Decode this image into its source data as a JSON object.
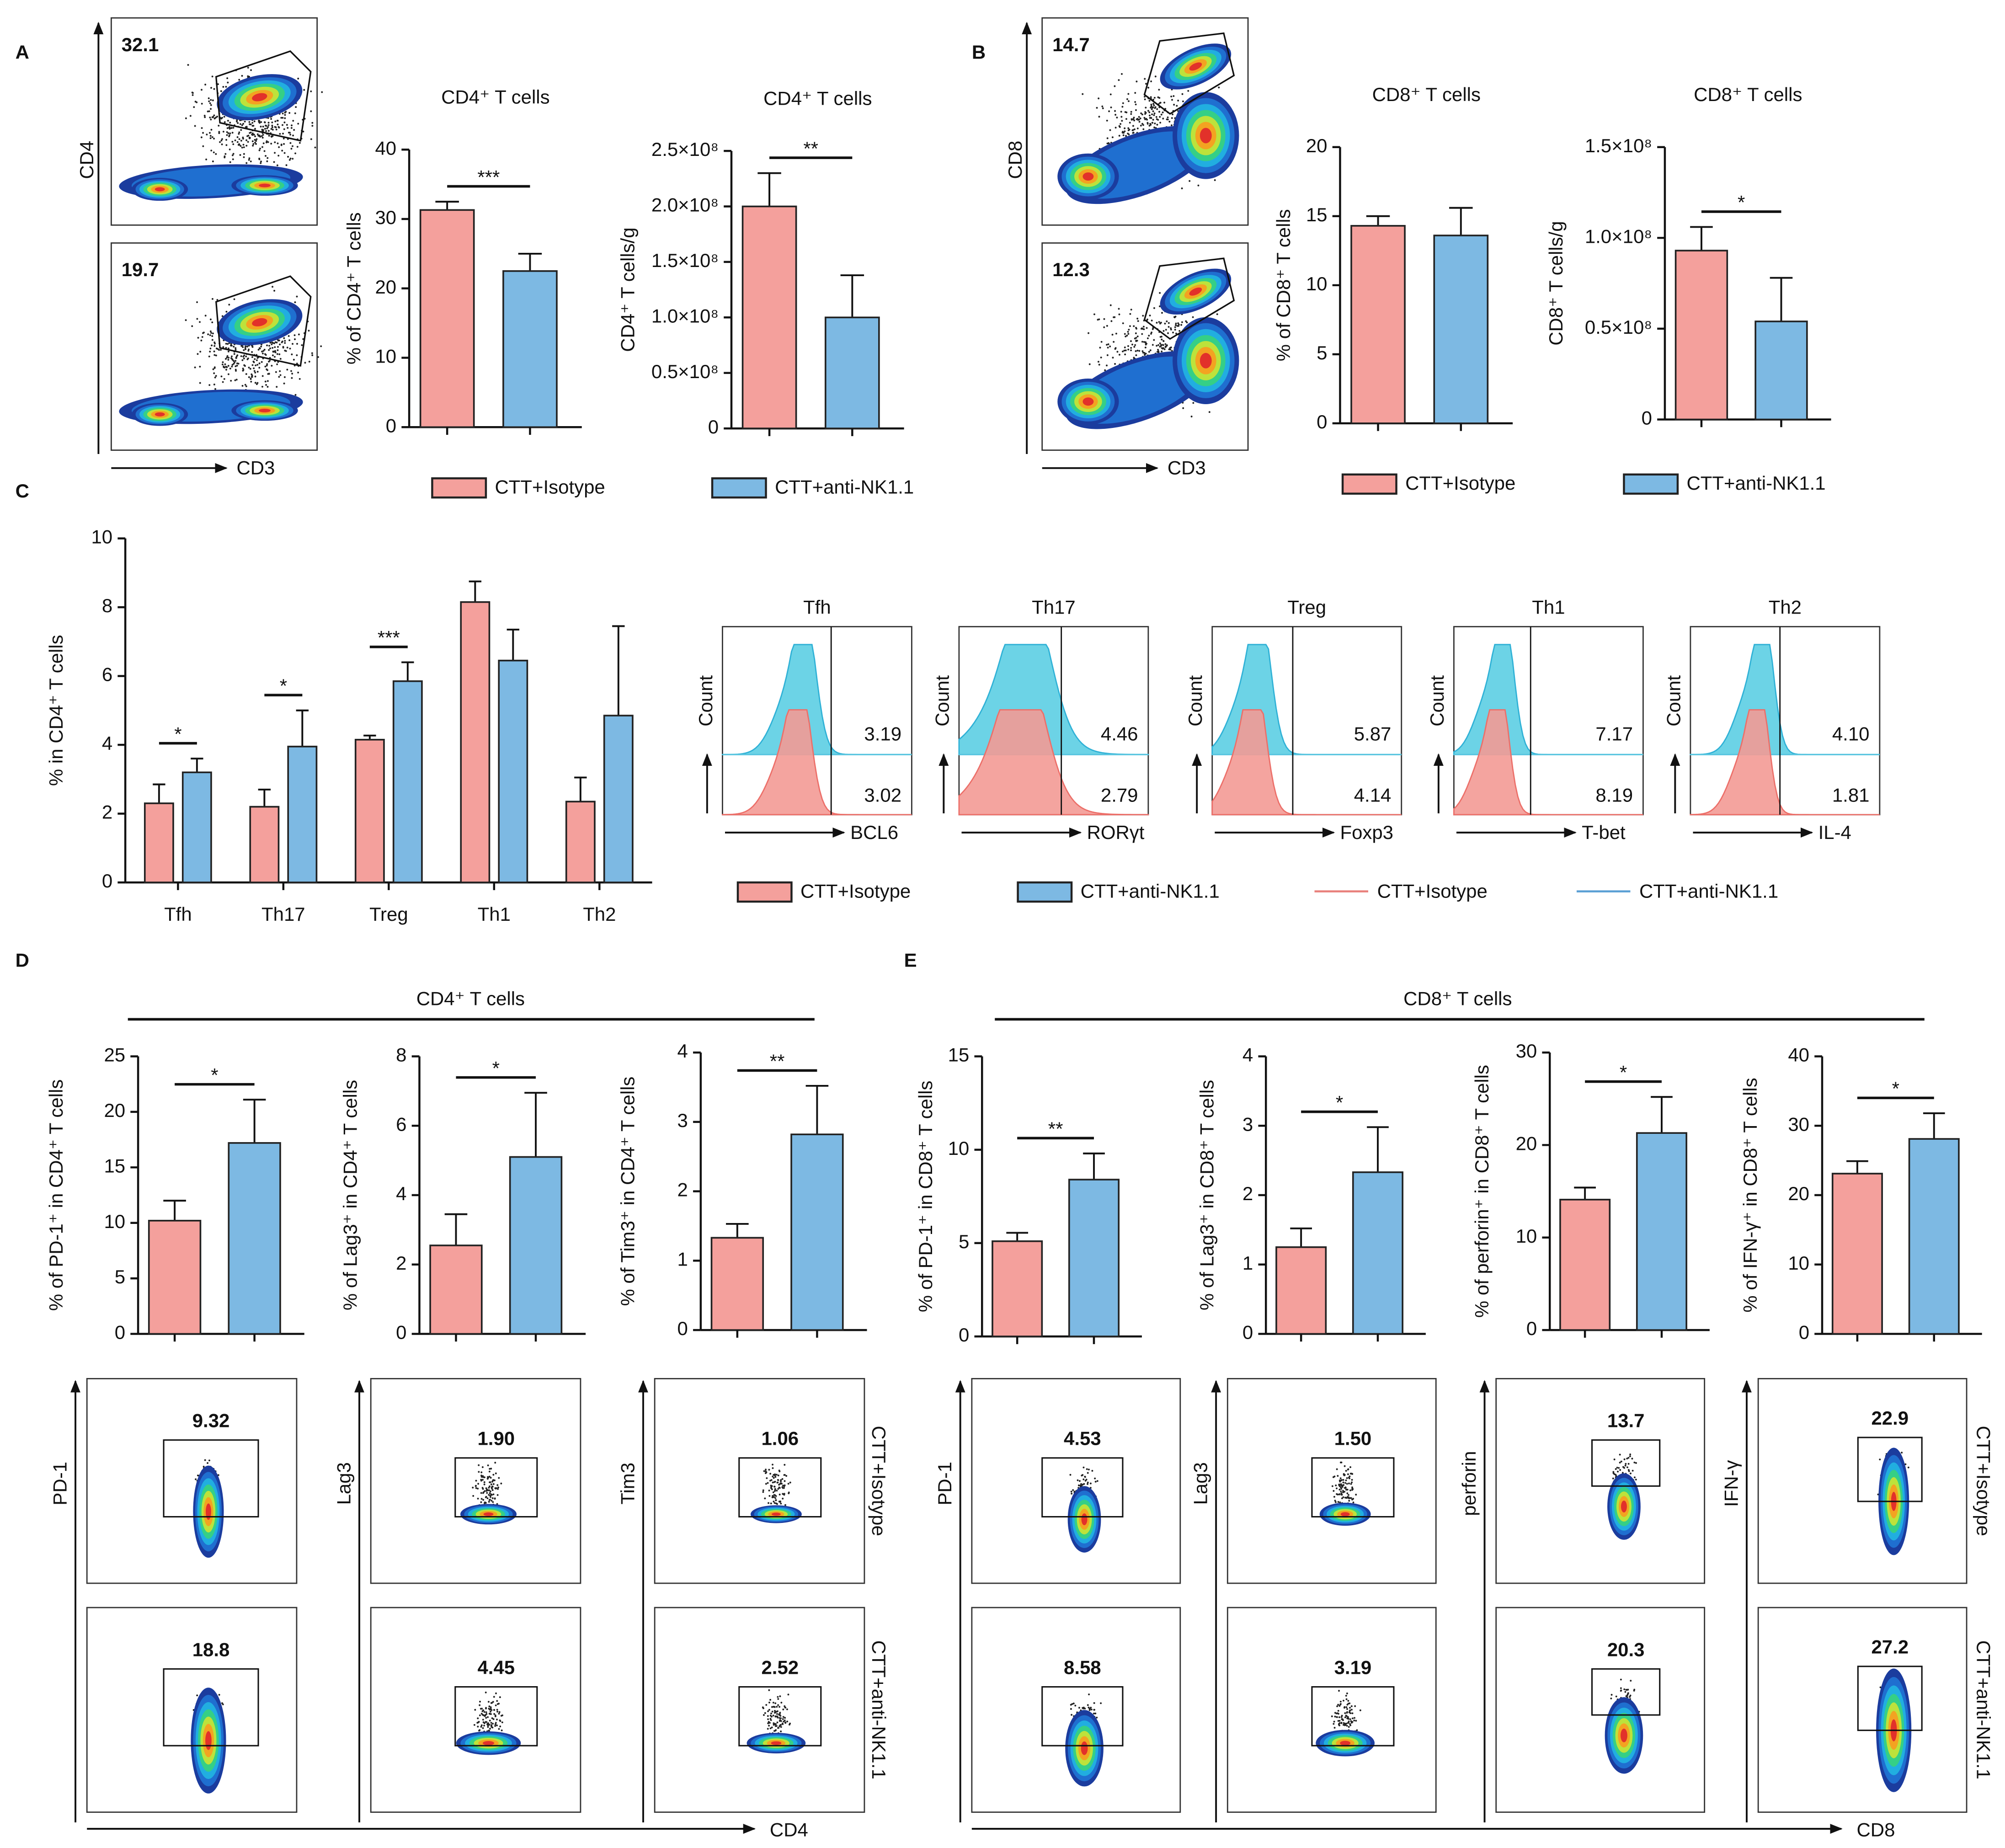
{
  "panels": [
    "A",
    "B",
    "C",
    "D",
    "E"
  ],
  "groups": [
    {
      "name": "CTT+Isotype",
      "color": "#f4a09c"
    },
    {
      "name": "CTT+anti-NK1.1",
      "color": "#7db9e3"
    }
  ],
  "headers": [
    "CD4⁺ T cells",
    "CD8⁺ T cells"
  ],
  "chart_data": [
    {
      "type": "bar",
      "title": "CD4⁺ T cells",
      "ylabel": "% of CD4⁺ T cells",
      "ylim": [
        0,
        40
      ],
      "yticks": [
        0,
        10,
        20,
        30,
        40
      ],
      "series": [
        {
          "values": [
            31.3
          ],
          "errors": [
            1.2
          ]
        },
        {
          "values": [
            22.5
          ],
          "errors": [
            2.5
          ]
        }
      ],
      "significance": "***"
    },
    {
      "type": "bar",
      "title": "CD4⁺ T cells",
      "ylabel": "CD4⁺ T cells/g",
      "ylim": [
        0,
        250000000
      ],
      "yticks": [
        0,
        {
          "value": 50000000,
          "label": "0.5×10⁸"
        },
        {
          "value": 100000000,
          "label": "1.0×10⁸"
        },
        {
          "value": 150000000,
          "label": "1.5×10⁸"
        },
        {
          "value": 200000000,
          "label": "2.0×10⁸"
        },
        {
          "value": 250000000,
          "label": "2.5×10⁸"
        }
      ],
      "series": [
        {
          "values": [
            200000000
          ],
          "errors": [
            30000000
          ]
        },
        {
          "values": [
            100000000
          ],
          "errors": [
            38000000
          ]
        }
      ],
      "significance": "**"
    },
    {
      "type": "bar",
      "title": "CD8⁺ T cells",
      "ylabel": "% of CD8⁺ T cells",
      "ylim": [
        0,
        20
      ],
      "yticks": [
        0,
        5,
        10,
        15,
        20
      ],
      "series": [
        {
          "values": [
            14.3
          ],
          "errors": [
            0.7
          ]
        },
        {
          "values": [
            13.6
          ],
          "errors": [
            2.0
          ]
        }
      ]
    },
    {
      "type": "bar",
      "title": "CD8⁺ T cells",
      "ylabel": "CD8⁺ T cells/g",
      "ylim": [
        0,
        150000000
      ],
      "yticks": [
        0,
        {
          "value": 50000000,
          "label": "0.5×10⁸"
        },
        {
          "value": 100000000,
          "label": "1.0×10⁸"
        },
        {
          "value": 150000000,
          "label": "1.5×10⁸"
        }
      ],
      "series": [
        {
          "values": [
            93000000
          ],
          "errors": [
            13000000
          ]
        },
        {
          "values": [
            54000000
          ],
          "errors": [
            24000000
          ]
        }
      ],
      "significance": "*"
    },
    {
      "type": "bar",
      "ylabel": "% in CD4⁺ T cells",
      "ylim": [
        0,
        10
      ],
      "yticks": [
        0,
        2,
        4,
        6,
        8,
        10
      ],
      "categories": [
        "Tfh",
        "Th17",
        "Treg",
        "Th1",
        "Th2"
      ],
      "series": [
        {
          "values": [
            2.3,
            2.2,
            4.15,
            8.15,
            2.35
          ],
          "errors": [
            0.55,
            0.5,
            0.12,
            0.6,
            0.7
          ]
        },
        {
          "values": [
            3.2,
            3.95,
            5.85,
            6.45,
            4.85
          ],
          "errors": [
            0.4,
            1.05,
            0.55,
            0.9,
            2.6
          ]
        }
      ],
      "significance": [
        "*",
        "*",
        "***",
        null,
        null
      ]
    },
    {
      "type": "bar",
      "ylabel": "% of PD-1⁺ in CD4⁺ T cells",
      "ylim": [
        0,
        25
      ],
      "yticks": [
        0,
        5,
        10,
        15,
        20,
        25
      ],
      "series": [
        {
          "values": [
            10.2
          ],
          "errors": [
            1.8
          ]
        },
        {
          "values": [
            17.2
          ],
          "errors": [
            3.9
          ]
        }
      ],
      "significance": "*"
    },
    {
      "type": "bar",
      "ylabel": "% of Lag3⁺ in CD4⁺ T cells",
      "ylim": [
        0,
        8
      ],
      "yticks": [
        0,
        2,
        4,
        6,
        8
      ],
      "series": [
        {
          "values": [
            2.55
          ],
          "errors": [
            0.9
          ]
        },
        {
          "values": [
            5.1
          ],
          "errors": [
            1.85
          ]
        }
      ],
      "significance": "*"
    },
    {
      "type": "bar",
      "ylabel": "% of Tim3⁺ in CD4⁺ T cells",
      "ylim": [
        0,
        4
      ],
      "yticks": [
        0,
        1,
        2,
        3,
        4
      ],
      "series": [
        {
          "values": [
            1.33
          ],
          "errors": [
            0.2
          ]
        },
        {
          "values": [
            2.82
          ],
          "errors": [
            0.7
          ]
        }
      ],
      "significance": "**"
    },
    {
      "type": "bar",
      "ylabel": "% of PD-1⁺ in CD8⁺ T cells",
      "ylim": [
        0,
        15
      ],
      "yticks": [
        0,
        5,
        10,
        15
      ],
      "series": [
        {
          "values": [
            5.1
          ],
          "errors": [
            0.45
          ]
        },
        {
          "values": [
            8.4
          ],
          "errors": [
            1.4
          ]
        }
      ],
      "significance": "**"
    },
    {
      "type": "bar",
      "ylabel": "% of Lag3⁺ in CD8⁺ T cells",
      "ylim": [
        0,
        4
      ],
      "yticks": [
        0,
        1,
        2,
        3,
        4
      ],
      "series": [
        {
          "values": [
            1.25
          ],
          "errors": [
            0.27
          ]
        },
        {
          "values": [
            2.33
          ],
          "errors": [
            0.65
          ]
        }
      ],
      "significance": "*"
    },
    {
      "type": "bar",
      "ylabel": "% of perforin⁺ in CD8⁺ T cells",
      "ylim": [
        0,
        30
      ],
      "yticks": [
        0,
        10,
        20,
        30
      ],
      "series": [
        {
          "values": [
            14.1
          ],
          "errors": [
            1.3
          ]
        },
        {
          "values": [
            21.3
          ],
          "errors": [
            3.9
          ]
        }
      ],
      "significance": "*"
    },
    {
      "type": "bar",
      "ylabel": "% of IFN-γ⁺ in CD8⁺ T cells",
      "ylim": [
        0,
        40
      ],
      "yticks": [
        0,
        10,
        20,
        30,
        40
      ],
      "series": [
        {
          "values": [
            23.1
          ],
          "errors": [
            1.8
          ]
        },
        {
          "values": [
            28.1
          ],
          "errors": [
            3.7
          ]
        }
      ],
      "significance": "*"
    }
  ],
  "density_plots": [
    {
      "xlabel": "CD3",
      "ylabel": "CD4",
      "values": [
        32.1,
        19.7
      ]
    },
    {
      "xlabel": "CD3",
      "ylabel": "CD8",
      "values": [
        14.7,
        12.3
      ]
    }
  ],
  "count_label": "Count",
  "histograms": [
    {
      "title": "Tfh",
      "marker": "BCL6",
      "values": [
        3.19,
        3.02
      ]
    },
    {
      "title": "Th17",
      "marker": "RORγt",
      "values": [
        4.46,
        2.79
      ]
    },
    {
      "title": "Treg",
      "marker": "Foxp3",
      "values": [
        5.87,
        4.14
      ]
    },
    {
      "title": "Th1",
      "marker": "T-bet",
      "values": [
        7.17,
        8.19
      ]
    },
    {
      "title": "Th2",
      "marker": "IL-4",
      "values": [
        {
          "value": 4.1,
          "label": "4.10"
        },
        1.81
      ]
    }
  ],
  "gating_plots": [
    {
      "xlabel": "CD4",
      "markers": [
        "PD-1",
        "Lag3",
        "Tim3"
      ],
      "values": [
        [
          9.32,
          18.8
        ],
        [
          {
            "value": 1.9,
            "label": "1.90"
          },
          4.45
        ],
        [
          1.06,
          2.52
        ]
      ]
    },
    {
      "xlabel": "CD8",
      "markers": [
        "PD-1",
        "Lag3",
        "perforin",
        "IFN-γ"
      ],
      "values": [
        [
          4.53,
          8.58
        ],
        [
          {
            "value": 1.5,
            "label": "1.50"
          },
          3.19
        ],
        [
          13.7,
          20.3
        ],
        [
          22.9,
          27.2
        ]
      ]
    }
  ]
}
